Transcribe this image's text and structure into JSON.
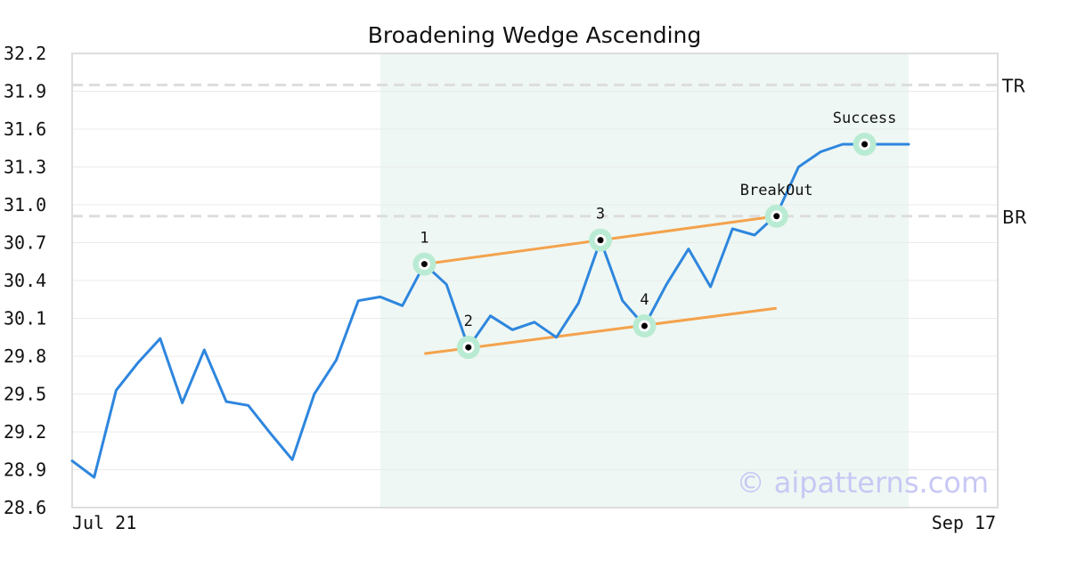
{
  "chart_data": {
    "type": "line",
    "title": "Broadening Wedge Ascending",
    "xlabel": "",
    "ylabel": "",
    "ylim": [
      28.6,
      32.2
    ],
    "yticks": [
      "32.2",
      "31.9",
      "31.6",
      "31.3",
      "31.0",
      "30.7",
      "30.4",
      "30.1",
      "29.8",
      "29.5",
      "29.2",
      "28.9",
      "28.6"
    ],
    "x_first_label": "Jul 21",
    "x_last_label": "Sep 17",
    "grid": true,
    "colors": {
      "line": "#2e86de",
      "trend": "#f4a24c",
      "highlight": "#eef7f3",
      "marker_halo": "#b9ebd3",
      "ref_line": "#dddddd"
    },
    "series": [
      {
        "values": [
          28.97,
          28.84,
          29.53,
          29.75,
          29.94,
          29.43,
          29.85,
          29.44,
          29.41,
          29.19,
          28.98,
          29.5,
          29.77,
          30.24,
          30.27,
          30.2,
          30.53,
          30.37,
          29.87,
          30.12,
          30.01,
          30.07,
          29.95,
          30.22,
          30.72,
          30.24,
          30.04,
          30.37,
          30.65,
          30.35,
          30.81,
          30.76,
          30.92,
          31.3,
          31.42,
          31.48,
          31.48,
          31.48,
          31.48
        ]
      }
    ],
    "highlight_range": [
      14,
      38
    ],
    "reference_lines": [
      {
        "label": "TR",
        "y": 31.95
      },
      {
        "label": "BR",
        "y": 30.91
      }
    ],
    "trendlines": [
      {
        "from": [
          16,
          30.53
        ],
        "to": [
          32,
          30.91
        ]
      },
      {
        "from": [
          16,
          29.82
        ],
        "to": [
          32,
          30.18
        ]
      }
    ],
    "points": [
      {
        "label": "1",
        "x": 16,
        "y": 30.53
      },
      {
        "label": "2",
        "x": 18,
        "y": 29.87
      },
      {
        "label": "3",
        "x": 24,
        "y": 30.72
      },
      {
        "label": "4",
        "x": 26,
        "y": 30.04
      },
      {
        "label": "BreakOut",
        "x": 32,
        "y": 30.91
      },
      {
        "label": "Success",
        "x": 36,
        "y": 31.48
      }
    ],
    "watermark": "© aipatterns.com"
  }
}
